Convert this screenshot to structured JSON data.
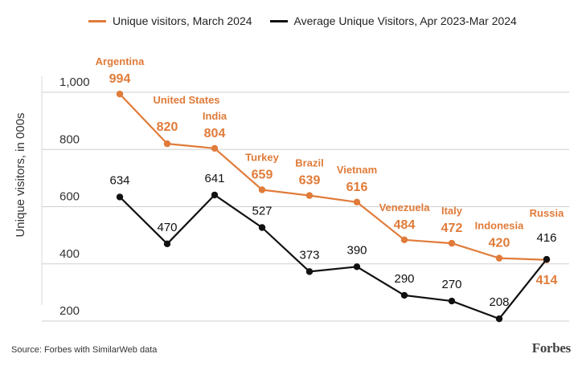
{
  "chart_data": {
    "type": "line",
    "categories": [
      "Argentina",
      "United States",
      "India",
      "Turkey",
      "Brazil",
      "Vietnam",
      "Venezuela",
      "Italy",
      "Indonesia",
      "Russia"
    ],
    "series": [
      {
        "name": "Unique visitors, March 2024",
        "values": [
          994,
          820,
          804,
          659,
          639,
          616,
          484,
          472,
          420,
          414
        ],
        "color": "#e07b39"
      },
      {
        "name": "Average Unique Visitors, Apr 2023-Mar 2024",
        "values": [
          634,
          470,
          641,
          527,
          373,
          390,
          290,
          270,
          208,
          416
        ],
        "color": "#111111"
      }
    ],
    "ylabel": "Unique visitors, in 000s",
    "yticks": [
      1000,
      800,
      600,
      400,
      200
    ],
    "ytick_labels": [
      "1,000",
      "800",
      "600",
      "400",
      "200"
    ],
    "ylim": [
      200,
      1000
    ],
    "grid": true,
    "legend": "top"
  },
  "footer": {
    "source": "Source: Forbes with SimilarWeb data",
    "brand": "Forbes"
  }
}
